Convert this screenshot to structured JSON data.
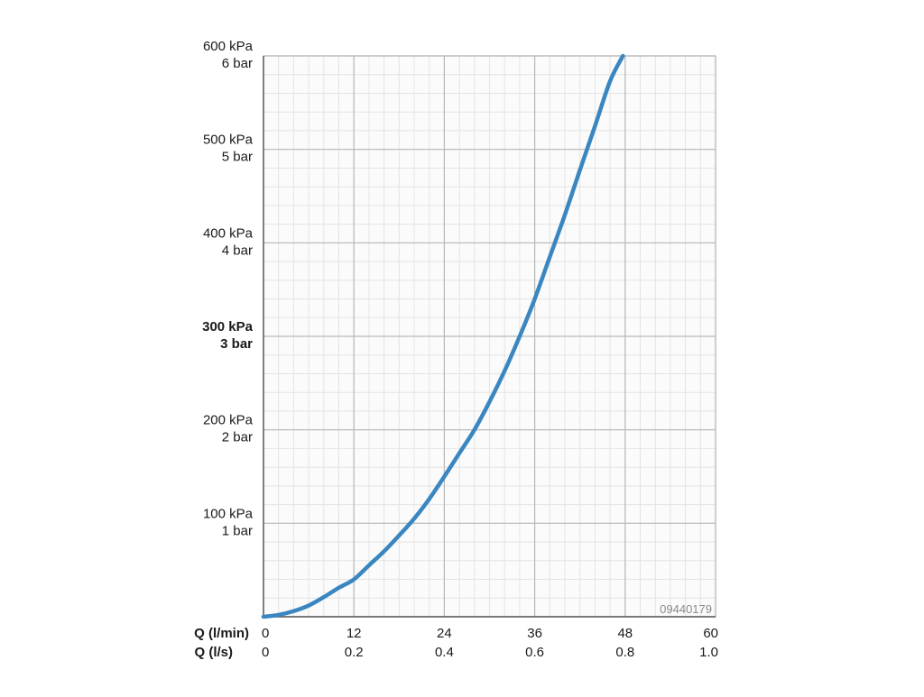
{
  "chart_data": {
    "type": "line",
    "image_code": "09440179",
    "colors": {
      "curve": "#3a86c0",
      "major_grid": "#b8b8b8",
      "minor_grid": "#e4e4e4",
      "text": "#1a1a1a",
      "code_text": "#8a8a8a"
    },
    "grid": true,
    "y_axis": {
      "unit_primary": "kPa",
      "unit_secondary": "bar",
      "ylim": [
        0,
        600
      ],
      "minor_step": 20,
      "ticks": [
        {
          "value": 100,
          "kpa": "100 kPa",
          "bar": "1 bar",
          "bold": false
        },
        {
          "value": 200,
          "kpa": "200 kPa",
          "bar": "2 bar",
          "bold": false
        },
        {
          "value": 300,
          "kpa": "300 kPa",
          "bar": "3 bar",
          "bold": true
        },
        {
          "value": 400,
          "kpa": "400 kPa",
          "bar": "4 bar",
          "bold": false
        },
        {
          "value": 500,
          "kpa": "500 kPa",
          "bar": "5 bar",
          "bold": false
        },
        {
          "value": 600,
          "kpa": "600 kPa",
          "bar": "6 bar",
          "bold": false
        }
      ]
    },
    "x_axis": {
      "xlim": [
        0,
        60
      ],
      "minor_step": 2,
      "row1_label": "Q (l/min)",
      "row2_label": "Q (l/s)",
      "ticks": [
        {
          "value": 0,
          "lmin": "0",
          "ls": "0"
        },
        {
          "value": 12,
          "lmin": "12",
          "ls": "0.2"
        },
        {
          "value": 24,
          "lmin": "24",
          "ls": "0.4"
        },
        {
          "value": 36,
          "lmin": "36",
          "ls": "0.6"
        },
        {
          "value": 48,
          "lmin": "48",
          "ls": "0.8"
        },
        {
          "value": 60,
          "lmin": "60",
          "ls": "1.0"
        }
      ]
    },
    "series": [
      {
        "x": [
          0,
          2,
          4,
          6,
          8,
          10,
          12,
          14,
          16,
          18,
          20,
          22,
          24,
          26,
          28,
          30,
          32,
          34,
          36,
          38,
          40,
          42,
          44,
          46,
          47.7
        ],
        "y": [
          0,
          2,
          6,
          12,
          21,
          31,
          40,
          55,
          70,
          87,
          105,
          126,
          150,
          175,
          200,
          230,
          263,
          300,
          340,
          385,
          430,
          478,
          525,
          573,
          600
        ]
      }
    ]
  }
}
